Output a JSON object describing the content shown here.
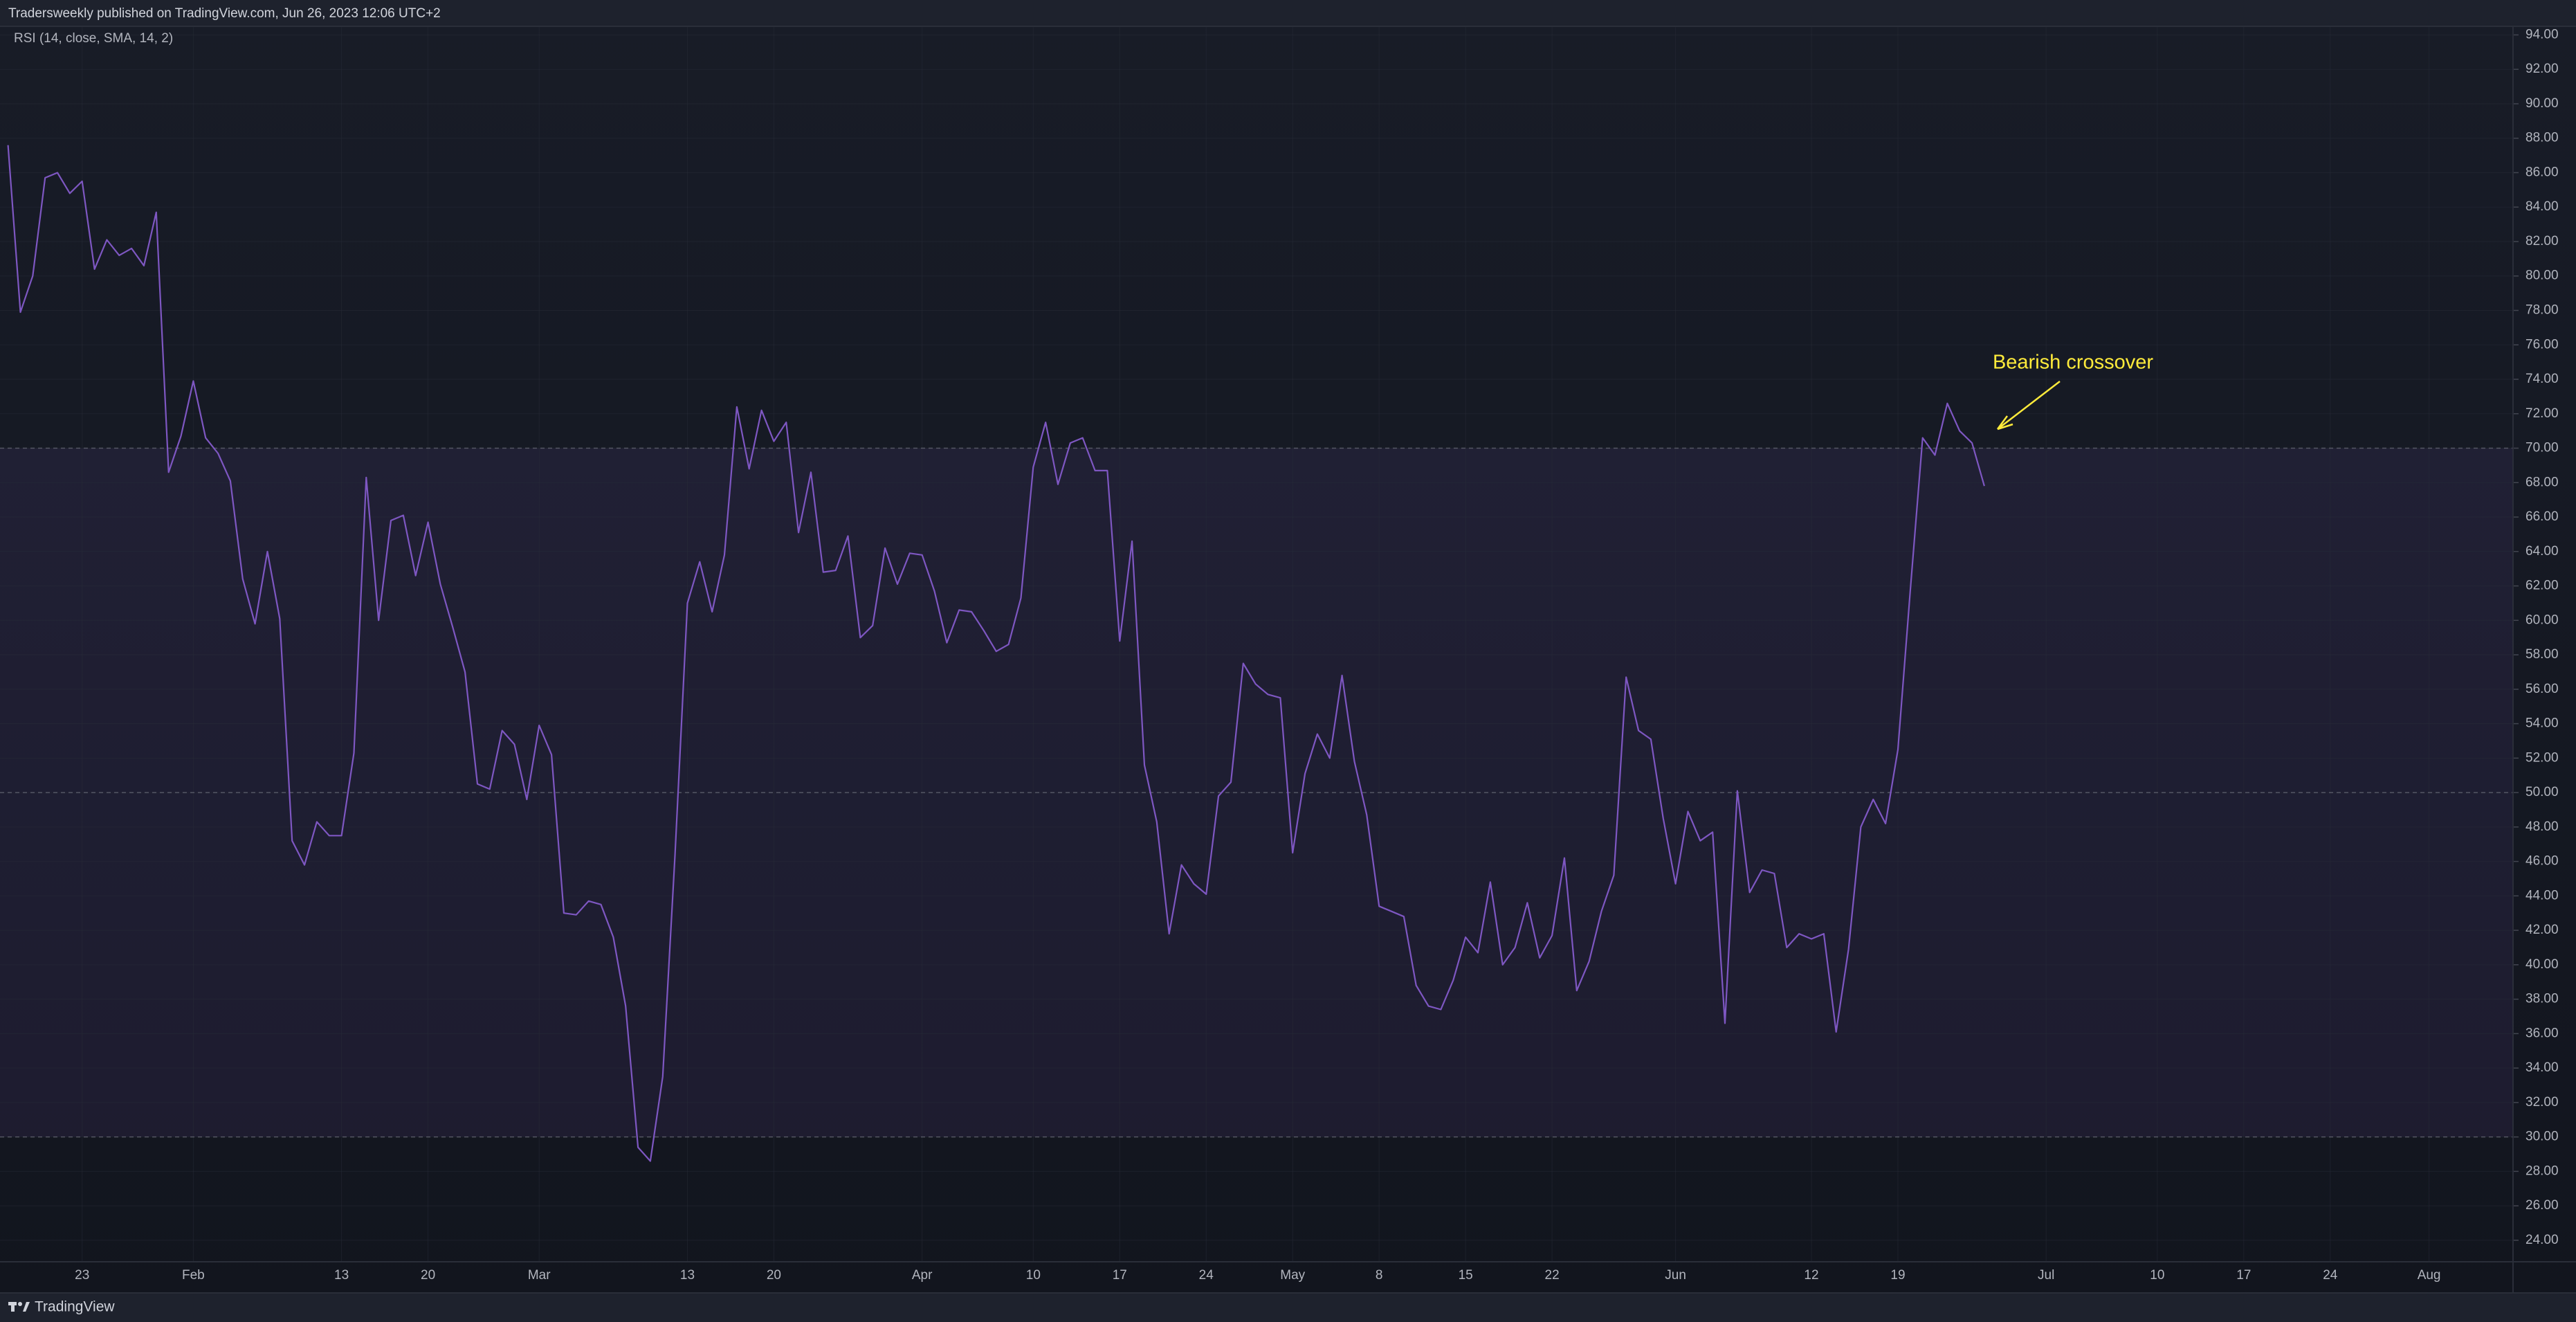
{
  "header": {
    "text": "Tradersweekly published on TradingView.com, Jun 26, 2023 12:06 UTC+2"
  },
  "footer": {
    "brand": "TradingView"
  },
  "chart_data": {
    "type": "line",
    "subtitle": "RSI (14, close, SMA, 14, 2)",
    "color": "#7e57c2",
    "levels": [
      30,
      50,
      70
    ],
    "band_color": "#7e57c2",
    "grid": true,
    "annotations": [
      {
        "text": "Bearish crossover",
        "color": "#ffeb3b"
      }
    ],
    "xlim": [
      16.35,
      219.8
    ],
    "ylim": [
      22.75,
      94.5
    ],
    "xticks": [
      23,
      {
        "value": 32,
        "label": "Feb"
      },
      {
        "value": 44,
        "label": "13"
      },
      {
        "value": 51,
        "label": "20"
      },
      {
        "value": 60,
        "label": "Mar"
      },
      {
        "value": 72,
        "label": "13"
      },
      {
        "value": 79,
        "label": "20"
      },
      {
        "value": 91,
        "label": "Apr"
      },
      {
        "value": 100,
        "label": "10"
      },
      {
        "value": 107,
        "label": "17"
      },
      {
        "value": 114,
        "label": "24"
      },
      {
        "value": 121,
        "label": "May"
      },
      {
        "value": 128,
        "label": "8"
      },
      {
        "value": 135,
        "label": "15"
      },
      {
        "value": 142,
        "label": "22"
      },
      {
        "value": 152,
        "label": "Jun"
      },
      {
        "value": 163,
        "label": "12"
      },
      {
        "value": 170,
        "label": "19"
      },
      {
        "value": 182,
        "label": "Jul"
      },
      {
        "value": 191,
        "label": "10"
      },
      {
        "value": 198,
        "label": "17"
      },
      {
        "value": 205,
        "label": "24"
      },
      {
        "value": 213,
        "label": "Aug"
      }
    ],
    "yticks": [
      {
        "value": 24,
        "label": "24.00"
      },
      {
        "value": 26,
        "label": "26.00"
      },
      {
        "value": 28,
        "label": "28.00"
      },
      {
        "value": 30,
        "label": "30.00"
      },
      {
        "value": 32,
        "label": "32.00"
      },
      {
        "value": 34,
        "label": "34.00"
      },
      {
        "value": 36,
        "label": "36.00"
      },
      {
        "value": 38,
        "label": "38.00"
      },
      {
        "value": 40,
        "label": "40.00"
      },
      {
        "value": 42,
        "label": "42.00"
      },
      {
        "value": 44,
        "label": "44.00"
      },
      {
        "value": 46,
        "label": "46.00"
      },
      {
        "value": 48,
        "label": "48.00"
      },
      {
        "value": 50,
        "label": "50.00"
      },
      {
        "value": 52,
        "label": "52.00"
      },
      {
        "value": 54,
        "label": "54.00"
      },
      {
        "value": 56,
        "label": "56.00"
      },
      {
        "value": 58,
        "label": "58.00"
      },
      {
        "value": 60,
        "label": "60.00"
      },
      {
        "value": 62,
        "label": "62.00"
      },
      {
        "value": 64,
        "label": "64.00"
      },
      {
        "value": 66,
        "label": "66.00"
      },
      {
        "value": 68,
        "label": "68.00"
      },
      {
        "value": 70,
        "label": "70.00"
      },
      {
        "value": 72,
        "label": "72.00"
      },
      {
        "value": 74,
        "label": "74.00"
      },
      {
        "value": 76,
        "label": "76.00"
      },
      {
        "value": 78,
        "label": "78.00"
      },
      {
        "value": 80,
        "label": "80.00"
      },
      {
        "value": 82,
        "label": "82.00"
      },
      {
        "value": 84,
        "label": "84.00"
      },
      {
        "value": 86,
        "label": "86.00"
      },
      {
        "value": 88,
        "label": "88.00"
      },
      {
        "value": 90,
        "label": "90.00"
      },
      {
        "value": 92,
        "label": "92.00"
      },
      {
        "value": 94,
        "label": "94.00"
      }
    ],
    "x": [
      17,
      18,
      19,
      20,
      21,
      22,
      23,
      24,
      25,
      26,
      27,
      28,
      29,
      30,
      31,
      32,
      33,
      34,
      35,
      36,
      37,
      38,
      39,
      40,
      41,
      42,
      43,
      44,
      45,
      46,
      47,
      48,
      49,
      50,
      51,
      52,
      53,
      54,
      55,
      56,
      57,
      58,
      59,
      60,
      61,
      62,
      63,
      64,
      65,
      66,
      67,
      68,
      69,
      70,
      71,
      72,
      73,
      74,
      75,
      76,
      77,
      78,
      79,
      80,
      81,
      82,
      83,
      84,
      85,
      86,
      87,
      88,
      89,
      90,
      91,
      92,
      93,
      94,
      95,
      96,
      97,
      98,
      99,
      100,
      101,
      102,
      103,
      104,
      105,
      106,
      107,
      108,
      109,
      110,
      111,
      112,
      113,
      114,
      115,
      116,
      117,
      118,
      119,
      120,
      121,
      122,
      123,
      124,
      125,
      126,
      127,
      128,
      129,
      130,
      131,
      132,
      133,
      134,
      135,
      136,
      137,
      138,
      139,
      140,
      141,
      142,
      143,
      144,
      145,
      146,
      147,
      148,
      149,
      150,
      151,
      152,
      153,
      154,
      155,
      156,
      157,
      158,
      159,
      160,
      161,
      162,
      163,
      164,
      165,
      166,
      167,
      168,
      169,
      170,
      171,
      172,
      173,
      174,
      175,
      176,
      177
    ],
    "values": [
      87.6,
      77.9,
      80.0,
      85.7,
      86.0,
      84.8,
      85.5,
      80.4,
      82.1,
      81.2,
      81.6,
      80.6,
      83.7,
      68.6,
      70.7,
      73.9,
      70.6,
      69.7,
      68.1,
      62.4,
      59.8,
      64.0,
      60.1,
      47.2,
      45.8,
      48.3,
      47.5,
      47.5,
      52.3,
      68.3,
      60.0,
      65.8,
      66.1,
      62.6,
      65.7,
      62.1,
      59.6,
      57.0,
      50.5,
      50.2,
      53.6,
      52.8,
      49.6,
      53.9,
      52.2,
      43.0,
      42.9,
      43.7,
      43.5,
      41.6,
      37.6,
      29.4,
      28.6,
      33.5,
      46.4,
      61.0,
      63.4,
      60.5,
      63.8,
      72.4,
      68.8,
      72.2,
      70.4,
      71.5,
      65.1,
      68.6,
      62.8,
      62.9,
      64.9,
      59.0,
      59.7,
      64.2,
      62.1,
      63.9,
      63.8,
      61.7,
      58.7,
      60.6,
      60.5,
      59.4,
      58.2,
      58.6,
      61.3,
      68.9,
      71.5,
      67.9,
      70.3,
      70.6,
      68.7,
      68.7,
      58.8,
      64.6,
      51.6,
      48.3,
      41.8,
      45.8,
      44.7,
      44.1,
      49.8,
      50.6,
      57.5,
      56.3,
      55.7,
      55.5,
      46.5,
      51.1,
      53.4,
      52.0,
      56.8,
      51.8,
      48.7,
      43.4,
      43.1,
      42.8,
      38.8,
      37.6,
      37.4,
      39.1,
      41.6,
      40.7,
      44.8,
      40.0,
      41.0,
      43.6,
      40.4,
      41.7,
      46.2,
      38.5,
      40.2,
      43.1,
      45.2,
      56.7,
      53.6,
      53.1,
      48.5,
      44.7,
      48.9,
      47.2,
      47.7,
      36.6,
      50.1,
      44.2,
      45.5,
      45.3,
      41.0,
      41.8,
      41.5,
      41.8,
      36.1,
      40.9,
      48.0,
      49.6,
      48.2,
      52.5,
      61.7,
      70.6,
      69.6,
      72.6,
      71.0,
      70.3,
      67.8
    ]
  }
}
